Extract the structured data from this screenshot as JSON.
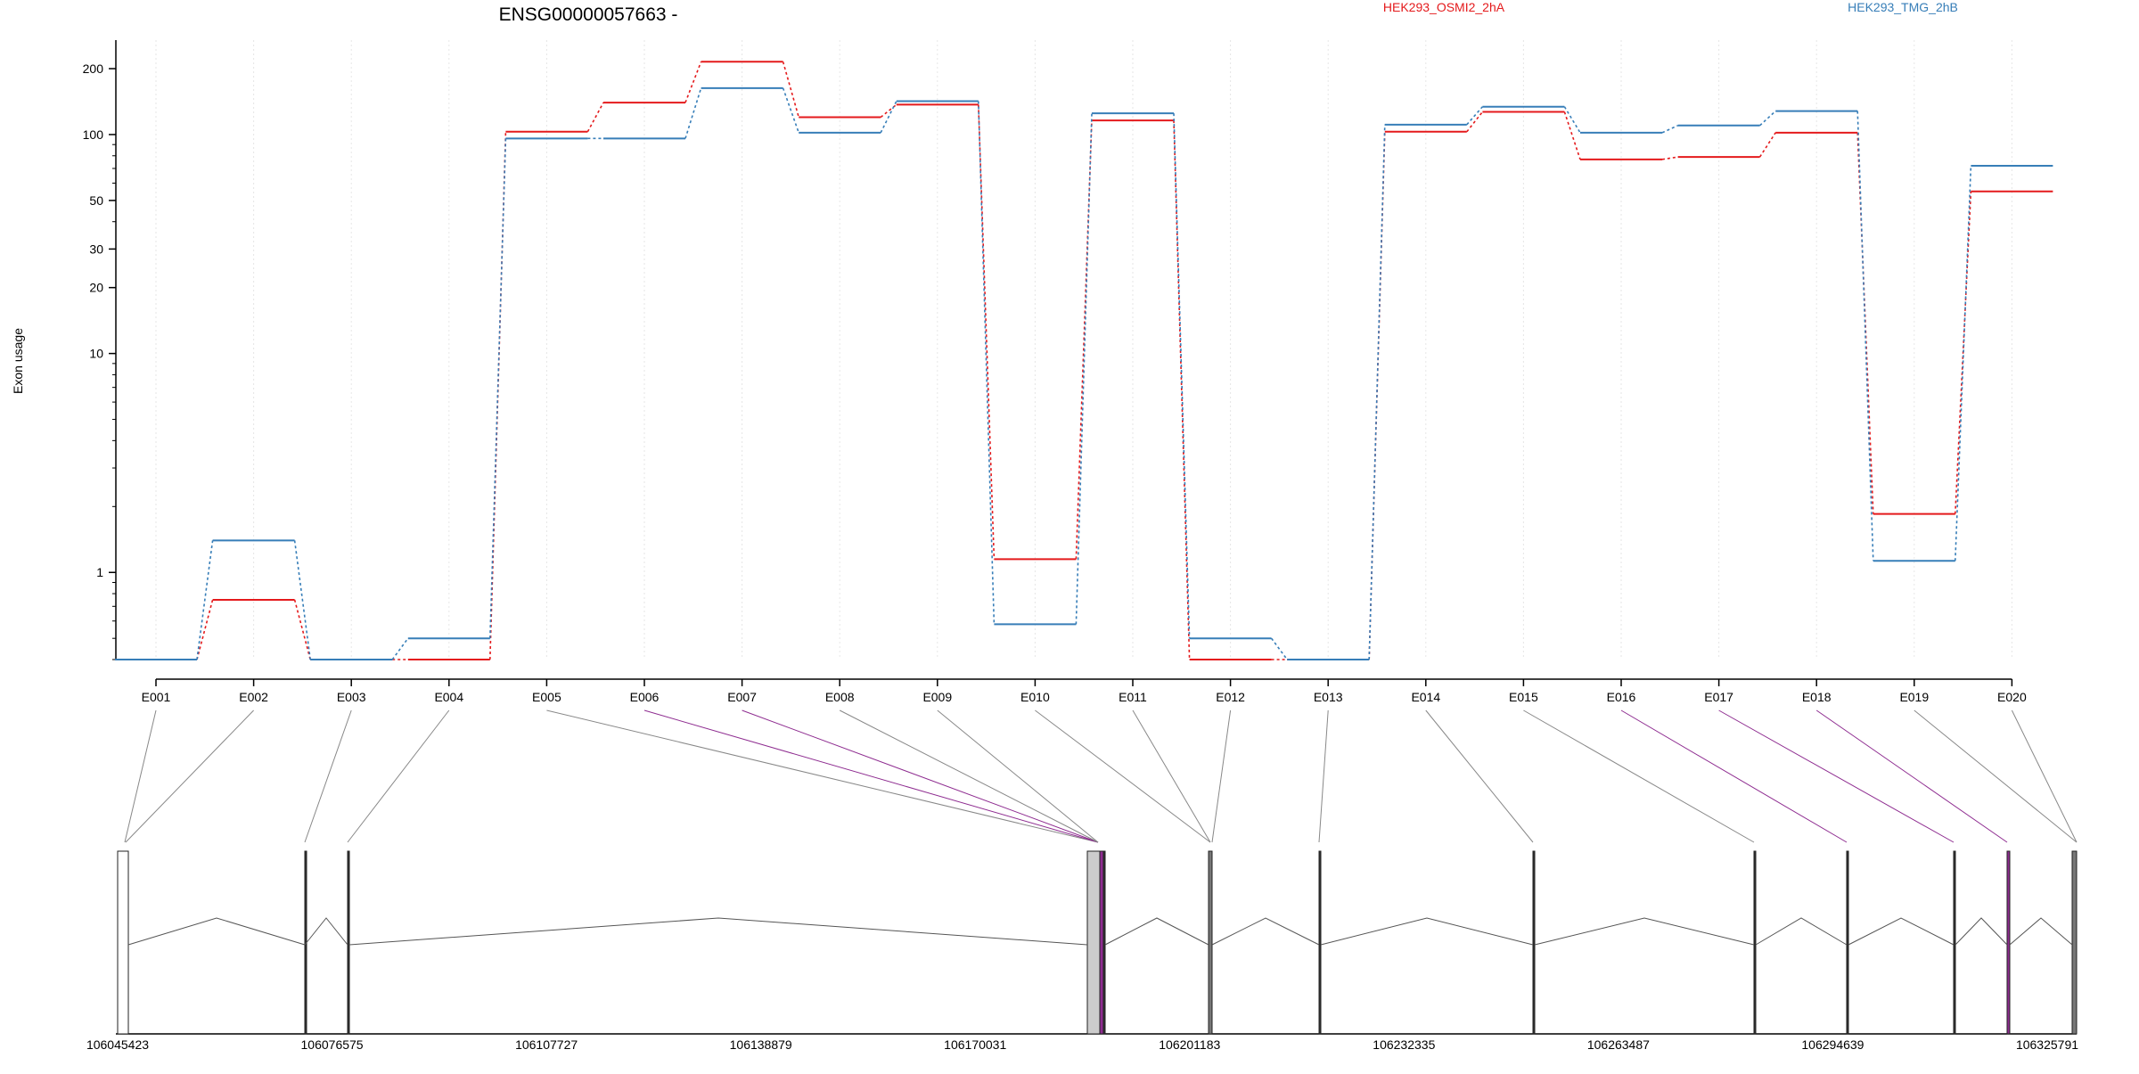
{
  "chart_data": {
    "type": "line",
    "title": "ENSG00000057663 -",
    "ylabel": "Exon usage",
    "yscale": "log",
    "ylim": [
      0.4,
      270
    ],
    "yticks": [
      1,
      10,
      20,
      30,
      50,
      100,
      200
    ],
    "ytick_labels": [
      "1",
      "10",
      "20",
      "30",
      "50",
      "100",
      "200"
    ],
    "grid": "vertical",
    "categories": [
      "E001",
      "E002",
      "E003",
      "E004",
      "E005",
      "E006",
      "E007",
      "E008",
      "E009",
      "E010",
      "E011",
      "E012",
      "E013",
      "E014",
      "E015",
      "E016",
      "E017",
      "E018",
      "E019",
      "E020"
    ],
    "series": [
      {
        "name": "HEK293_OSMI2_2hA",
        "color": "#e41a1c",
        "values": [
          0.4,
          0.75,
          0.4,
          0.4,
          103,
          140,
          215,
          120,
          137,
          1.15,
          116,
          0.4,
          0.4,
          103,
          127,
          77,
          79,
          102,
          1.85,
          55
        ]
      },
      {
        "name": "HEK293_TMG_2hB",
        "color": "#377eb8",
        "values": [
          0.4,
          1.4,
          0.4,
          0.5,
          96,
          96,
          163,
          102,
          142,
          0.58,
          125,
          0.5,
          0.4,
          111,
          134,
          102,
          110,
          128,
          1.13,
          72
        ]
      }
    ],
    "legend": {
      "position": "top",
      "entries": [
        "HEK293_OSMI2_2hA",
        "HEK293_TMG_2hB"
      ]
    },
    "gene_model": {
      "genomic_ticks": [
        "106045423",
        "106076575",
        "106107727",
        "106138879",
        "106170031",
        "106201183",
        "106232335",
        "106263487",
        "106294639",
        "106325791"
      ],
      "highlighted_exons": [
        "E006",
        "E007",
        "E016",
        "E017",
        "E018"
      ],
      "highlight_color": "#8e2c90"
    }
  }
}
